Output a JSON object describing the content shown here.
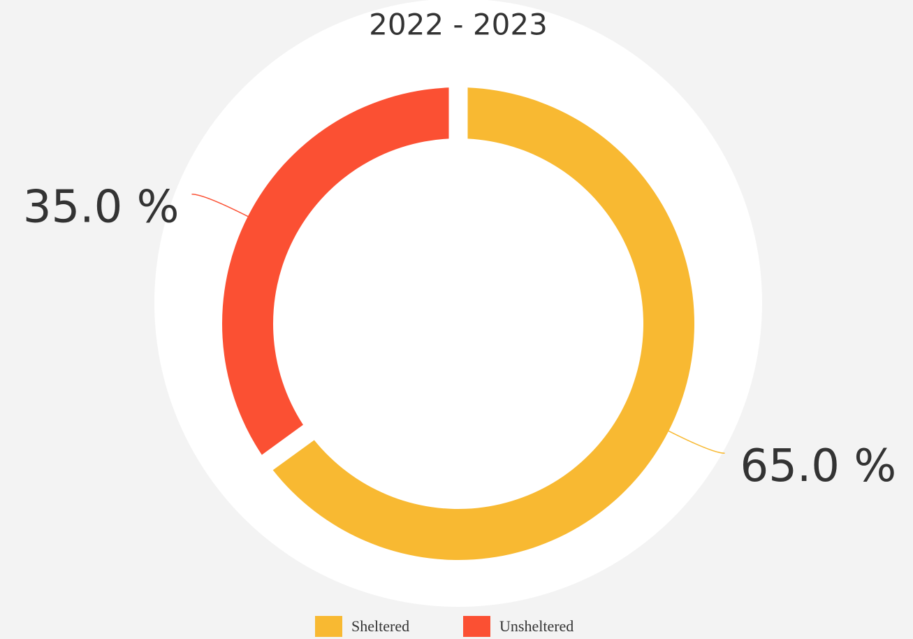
{
  "chart_data": {
    "type": "donut",
    "title": "2022 - 2023",
    "categories": [
      "Sheltered",
      "Unsheltered"
    ],
    "values": [
      65,
      35
    ],
    "value_labels": [
      "65.0 %",
      "35.0 %"
    ],
    "colors": [
      "#f8b932",
      "#fb5033"
    ],
    "legend": "bottom"
  }
}
